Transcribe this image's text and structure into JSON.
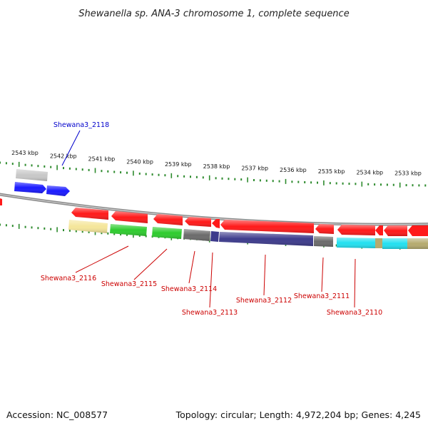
{
  "title": "Shewanella sp. ANA-3 chromosome 1, complete sequence",
  "footer": {
    "accession": "Accession: NC_008577",
    "summary": "Topology: circular; Length: 4,972,204 bp; Genes: 4,245"
  },
  "ruler": {
    "labels": [
      "2543 kbp",
      "2542 kbp",
      "2541 kbp",
      "2540 kbp",
      "2539 kbp",
      "2538 kbp",
      "2537 kbp",
      "2536 kbp",
      "2535 kbp",
      "2534 kbp",
      "2533 kbp"
    ]
  },
  "colors": {
    "backbone": "#8a8a8a",
    "tick": "#2e8b2e",
    "label_reverse": "#cc0000",
    "label_forward": "#0000cc",
    "cds_reverse": "#ff1a1a",
    "cds_forward": "#1a1aff",
    "gray_feature": "#c8c8c8",
    "yellow_feature": "#f5e69a",
    "green_feature": "#2ecc2e",
    "darkgray_feature": "#6b6b6b",
    "indigo_feature": "#3d3b8c",
    "cyan_feature": "#22e0f0",
    "olive_feature": "#b5aa6e"
  },
  "gene_labels": [
    {
      "id": "Shewana3_2118",
      "text": "Shewana3_2118",
      "strand": "forward"
    },
    {
      "id": "Shewana3_2116",
      "text": "Shewana3_2116",
      "strand": "reverse"
    },
    {
      "id": "Shewana3_2115",
      "text": "Shewana3_2115",
      "strand": "reverse"
    },
    {
      "id": "Shewana3_2114",
      "text": "Shewana3_2114",
      "strand": "reverse"
    },
    {
      "id": "Shewana3_2113",
      "text": "Shewana3_2113",
      "strand": "reverse"
    },
    {
      "id": "Shewana3_2112",
      "text": "Shewana3_2112",
      "strand": "reverse"
    },
    {
      "id": "Shewana3_2111",
      "text": "Shewana3_2111",
      "strand": "reverse"
    },
    {
      "id": "Shewana3_2110",
      "text": "Shewana3_2110",
      "strand": "reverse"
    }
  ]
}
